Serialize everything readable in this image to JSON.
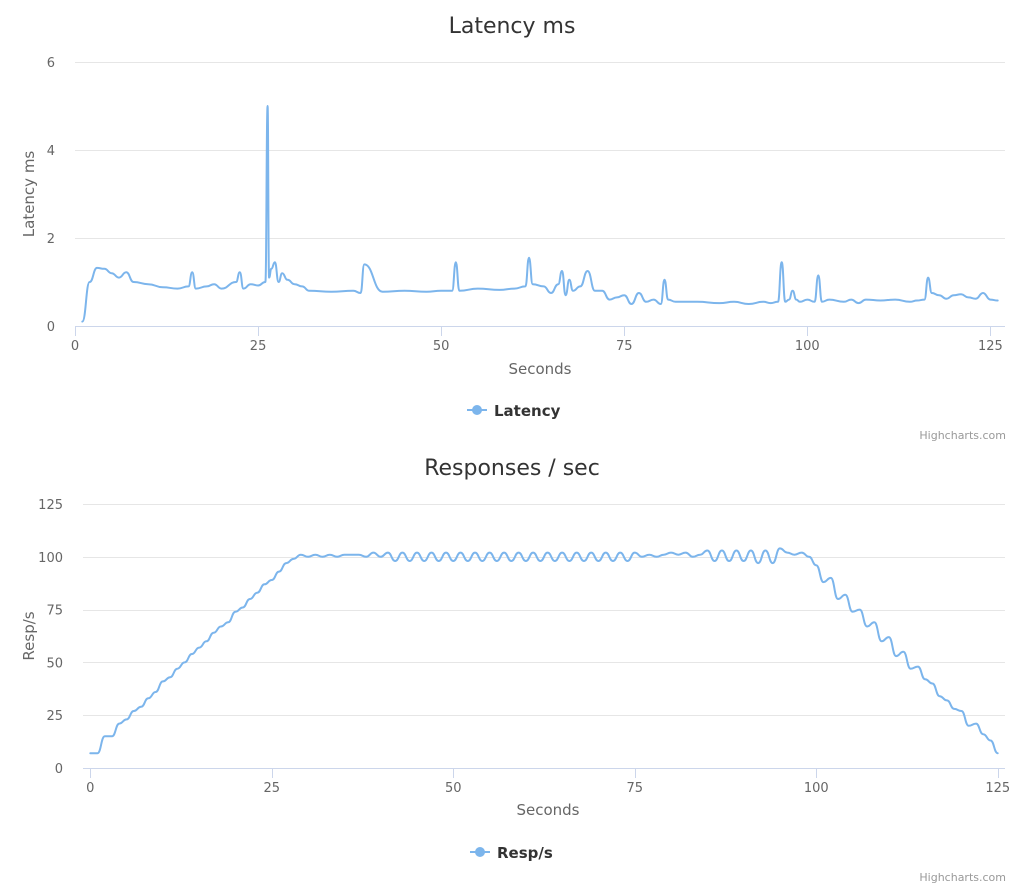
{
  "colors": {
    "series": "#7cb5ec",
    "grid": "#e6e6e6",
    "axis": "#ccd6eb",
    "text": "#333333",
    "muted": "#666666"
  },
  "chart_data": [
    {
      "type": "line",
      "title": "Latency ms",
      "xlabel": "Seconds",
      "ylabel": "Latency ms",
      "xlim": [
        0,
        127
      ],
      "ylim": [
        0,
        6
      ],
      "xticks": [
        0,
        25,
        50,
        75,
        100,
        125
      ],
      "yticks": [
        0,
        2,
        4,
        6
      ],
      "legend": "bottom-center",
      "credits": "Highcharts.com",
      "series": [
        {
          "name": "Latency",
          "x": [
            1,
            2,
            3,
            4,
            5,
            6,
            7,
            8,
            10,
            12,
            14,
            15.5,
            16,
            16.5,
            18,
            19,
            20,
            22,
            22.5,
            23,
            24,
            25,
            26,
            26.3,
            26.5,
            26.8,
            27.3,
            27.8,
            28.3,
            29,
            30,
            31,
            32,
            35,
            38,
            39,
            39.5,
            42,
            45,
            48,
            50,
            51.5,
            52,
            52.5,
            55,
            58,
            60,
            61.5,
            62,
            62.5,
            64,
            65,
            66,
            66.5,
            67,
            67.5,
            68,
            69,
            70,
            71,
            72,
            73,
            74,
            75,
            76,
            77,
            78,
            79,
            80,
            80.5,
            81,
            82,
            85,
            88,
            90,
            92,
            94,
            95,
            96,
            96.5,
            97,
            97.5,
            98,
            98.5,
            99,
            100,
            101,
            101.5,
            102,
            103,
            105,
            106,
            107,
            108,
            110,
            112,
            114,
            115,
            116,
            116.5,
            117,
            118,
            119,
            120,
            121,
            122,
            123,
            124,
            125,
            126
          ],
          "values": [
            0.1,
            1.0,
            1.32,
            1.3,
            1.2,
            1.1,
            1.22,
            1.0,
            0.95,
            0.88,
            0.85,
            0.9,
            1.22,
            0.85,
            0.9,
            0.95,
            0.85,
            1.0,
            1.22,
            0.85,
            0.95,
            0.92,
            1.0,
            5.0,
            1.1,
            1.3,
            1.45,
            1.0,
            1.2,
            1.05,
            0.95,
            0.9,
            0.8,
            0.78,
            0.8,
            0.75,
            1.4,
            0.78,
            0.8,
            0.78,
            0.8,
            0.8,
            1.45,
            0.8,
            0.85,
            0.82,
            0.85,
            0.9,
            1.55,
            0.95,
            0.9,
            0.75,
            0.95,
            1.25,
            0.7,
            1.05,
            0.8,
            0.9,
            1.25,
            0.8,
            0.8,
            0.6,
            0.65,
            0.7,
            0.5,
            0.75,
            0.55,
            0.6,
            0.5,
            1.05,
            0.6,
            0.55,
            0.55,
            0.52,
            0.55,
            0.5,
            0.55,
            0.52,
            0.55,
            1.45,
            0.55,
            0.6,
            0.8,
            0.6,
            0.55,
            0.6,
            0.55,
            1.15,
            0.55,
            0.6,
            0.55,
            0.6,
            0.52,
            0.6,
            0.58,
            0.6,
            0.55,
            0.58,
            0.6,
            1.1,
            0.75,
            0.7,
            0.62,
            0.7,
            0.72,
            0.65,
            0.62,
            0.75,
            0.6,
            0.58
          ]
        }
      ]
    },
    {
      "type": "line",
      "title": "Responses / sec",
      "xlabel": "Seconds",
      "ylabel": "Resp/s",
      "xlim": [
        -1,
        126
      ],
      "ylim": [
        0,
        125
      ],
      "xticks": [
        0,
        25,
        50,
        75,
        100,
        125
      ],
      "yticks": [
        0,
        25,
        50,
        75,
        100,
        125
      ],
      "legend": "bottom-center",
      "credits": "Highcharts.com",
      "series": [
        {
          "name": "Resp/s",
          "x": [
            0,
            1,
            2,
            3,
            4,
            5,
            6,
            7,
            8,
            9,
            10,
            11,
            12,
            13,
            14,
            15,
            16,
            17,
            18,
            19,
            20,
            21,
            22,
            23,
            24,
            25,
            26,
            27,
            28,
            29,
            30,
            31,
            32,
            33,
            34,
            35,
            36,
            37,
            38,
            39,
            40,
            41,
            42,
            43,
            44,
            45,
            46,
            47,
            48,
            49,
            50,
            51,
            52,
            53,
            54,
            55,
            56,
            57,
            58,
            59,
            60,
            61,
            62,
            63,
            64,
            65,
            66,
            67,
            68,
            69,
            70,
            71,
            72,
            73,
            74,
            75,
            76,
            77,
            78,
            79,
            80,
            81,
            82,
            83,
            84,
            85,
            86,
            87,
            88,
            89,
            90,
            91,
            92,
            93,
            94,
            95,
            96,
            97,
            98,
            99,
            100,
            101,
            102,
            103,
            104,
            105,
            106,
            107,
            108,
            109,
            110,
            111,
            112,
            113,
            114,
            115,
            116,
            117,
            118,
            119,
            120,
            121,
            122,
            123,
            124,
            125
          ],
          "values": [
            7,
            7,
            15,
            15,
            21,
            23,
            27,
            29,
            33,
            36,
            41,
            43,
            47,
            50,
            54,
            57,
            60,
            64,
            67,
            69,
            74,
            76,
            80,
            83,
            87,
            89,
            93,
            97,
            99,
            101,
            100,
            101,
            100,
            101,
            100,
            101,
            101,
            101,
            100,
            102,
            100,
            102,
            98,
            102,
            98,
            102,
            98,
            102,
            98,
            102,
            98,
            102,
            98,
            102,
            98,
            102,
            98,
            102,
            98,
            102,
            98,
            102,
            98,
            102,
            98,
            102,
            98,
            102,
            98,
            102,
            98,
            102,
            98,
            102,
            98,
            102,
            100,
            101,
            100,
            101,
            102,
            101,
            102,
            100,
            101,
            103,
            98,
            103,
            98,
            103,
            98,
            103,
            97,
            103,
            97,
            104,
            102,
            101,
            102,
            100,
            96,
            88,
            90,
            80,
            82,
            74,
            75,
            67,
            69,
            60,
            62,
            53,
            55,
            47,
            48,
            42,
            40,
            34,
            32,
            28,
            27,
            20,
            21,
            16,
            13,
            7
          ]
        }
      ]
    }
  ]
}
